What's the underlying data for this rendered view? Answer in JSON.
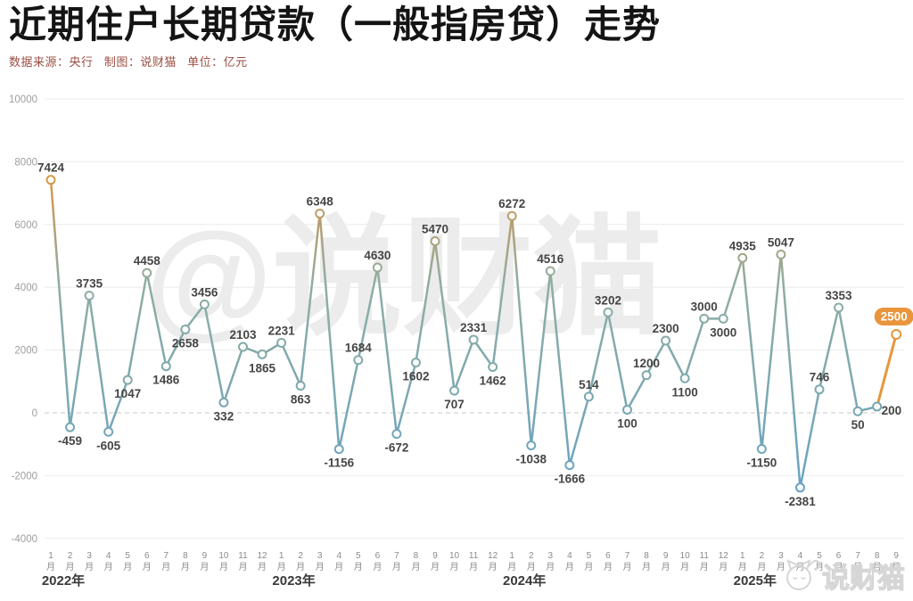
{
  "header": {
    "title": "近期住户长期贷款（一般指房贷）走势",
    "source_note": "数据来源：央行   制图：说财猫   单位：亿元"
  },
  "watermark": {
    "center": "@说财猫",
    "corner_brand": "说财猫"
  },
  "chart_data": {
    "type": "line",
    "title": "近期住户长期贷款（一般指房贷）走势",
    "source": "央行",
    "producer": "说财猫",
    "unit": "亿元",
    "ylim": [
      -4000,
      10000
    ],
    "yticks": [
      10000,
      8000,
      6000,
      4000,
      2000,
      0,
      -2000,
      -4000
    ],
    "grid": "horizontal, zero line dashed",
    "legend_position": "none",
    "month_suffix": "月",
    "months": [
      1,
      2,
      3,
      4,
      5,
      6,
      7,
      8,
      9,
      10,
      11,
      12,
      1,
      2,
      3,
      4,
      5,
      6,
      7,
      8,
      9,
      10,
      11,
      12,
      1,
      2,
      3,
      4,
      5,
      6,
      7,
      8,
      9,
      10,
      11,
      12,
      1,
      2,
      3,
      4,
      5,
      6,
      7,
      8,
      9
    ],
    "values": [
      7424,
      -459,
      3735,
      -605,
      1047,
      4458,
      1486,
      2658,
      3456,
      332,
      2103,
      1865,
      2231,
      863,
      6348,
      -1156,
      1684,
      4630,
      -672,
      1602,
      5470,
      707,
      2331,
      1462,
      6272,
      -1038,
      4516,
      -1666,
      514,
      3202,
      100,
      1200,
      2300,
      1100,
      3000,
      3000,
      4935,
      -1150,
      5047,
      -2381,
      746,
      3353,
      50,
      200,
      2500
    ],
    "label_positions": [
      "above",
      "below",
      "above",
      "below",
      "below",
      "above",
      "below",
      "below",
      "above",
      "below",
      "above",
      "below",
      "above",
      "below",
      "above",
      "below",
      "above",
      "above",
      "below",
      "below",
      "above",
      "below",
      "above",
      "below",
      "above",
      "below",
      "above",
      "below",
      "above",
      "above",
      "below",
      "above",
      "above",
      "below",
      "above",
      "below",
      "above",
      "below",
      "above",
      "below",
      "above",
      "above",
      "below",
      "right",
      "badge"
    ],
    "years": [
      {
        "label": "2022年",
        "start_index": 0
      },
      {
        "label": "2023年",
        "start_index": 12
      },
      {
        "label": "2024年",
        "start_index": 24
      },
      {
        "label": "2025年",
        "start_index": 36
      }
    ],
    "highlight": {
      "index": 44,
      "badge_label": "2500"
    },
    "colors": {
      "line_high": "#d99a45",
      "line_upper_mid": "#b5a073",
      "line_mid": "#8fada4",
      "line_lower_mid": "#7fa9ad",
      "line_low": "#66a2c8",
      "marker_fill": "#fbfdfc",
      "label": "#454545",
      "grid": "#ebebeb",
      "zero_line": "#c8c8c8",
      "tick": "#9e9e9e",
      "month": "#8b8b8b",
      "year": "#3a3a3a",
      "highlight": "#e8953c",
      "badge_text": "#ffffff",
      "watermark": "#ececec",
      "corner": "#d6d6d6"
    }
  }
}
